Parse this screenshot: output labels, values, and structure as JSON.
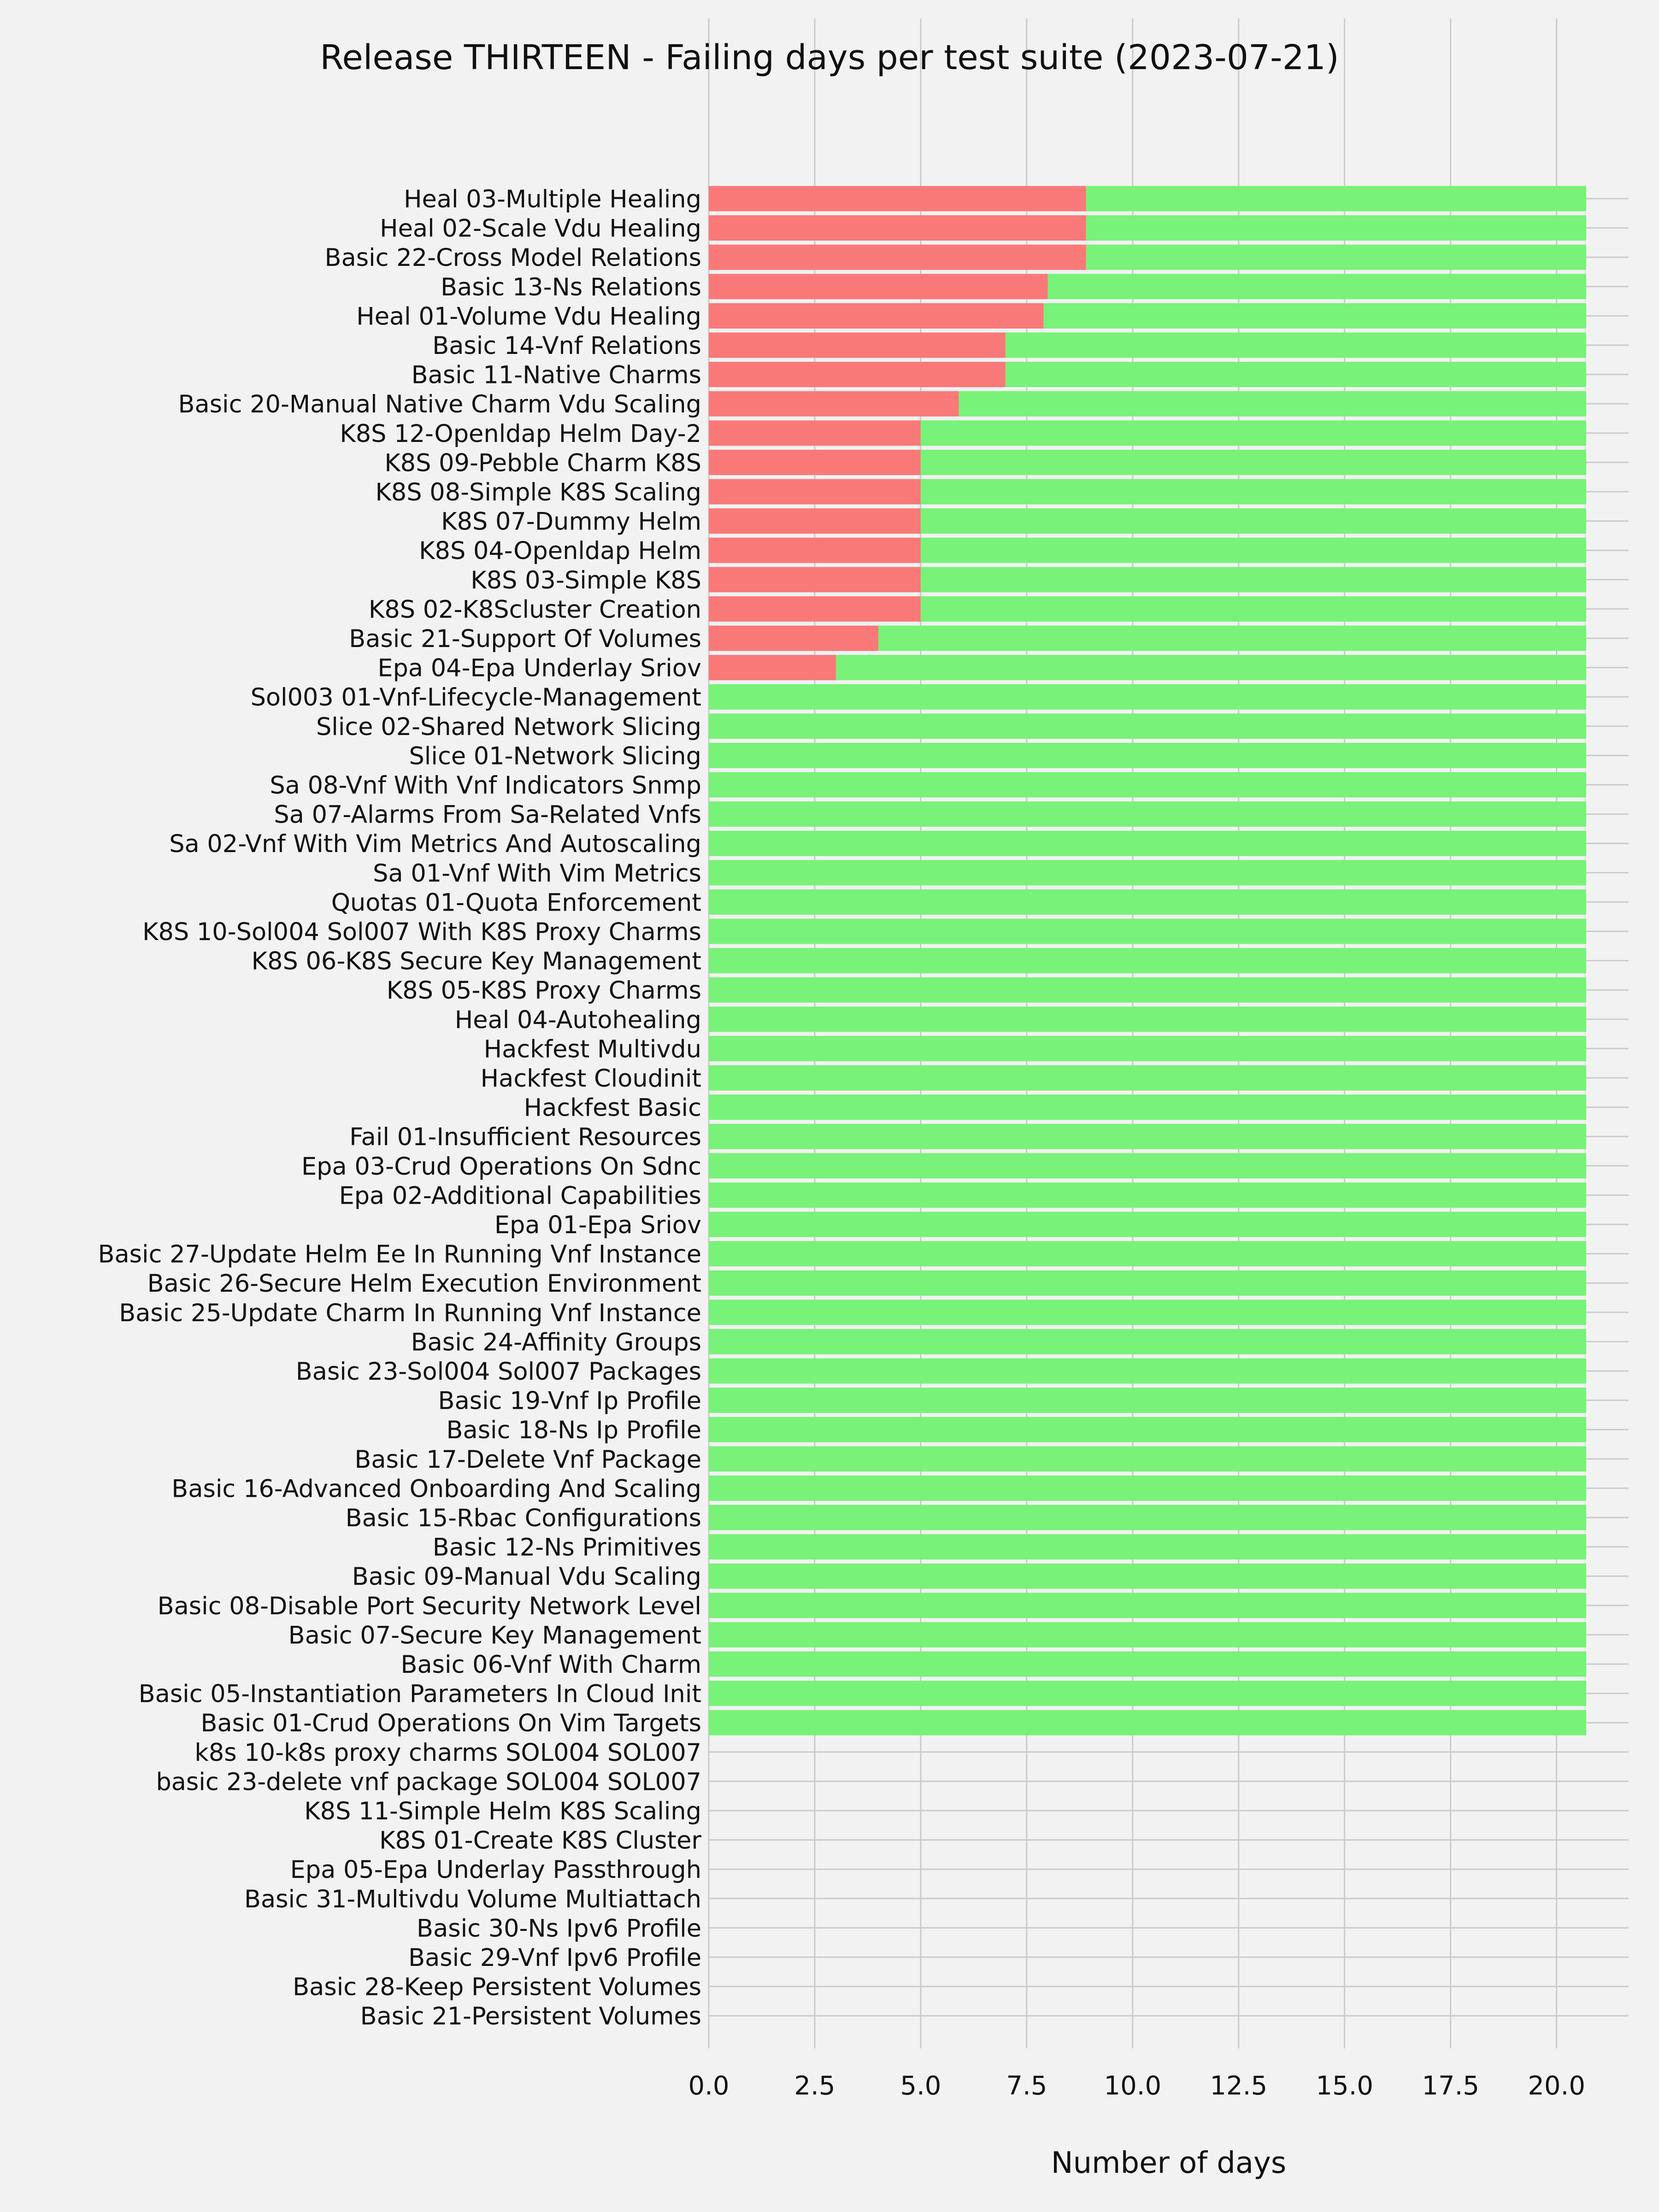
{
  "colors": {
    "background": "#f2f2f2",
    "failing": "#f97979",
    "passing": "#78f278",
    "grid": "#cbcbcb",
    "text": "#111111"
  },
  "chart_data": {
    "type": "bar",
    "orientation": "horizontal",
    "stacked": true,
    "title": "Release THIRTEEN - Failing days per test suite (2023-07-21)",
    "xlabel": "Number of days",
    "ylabel": "",
    "xlim": [
      0,
      21.7
    ],
    "xticks": [
      "0.0",
      "2.5",
      "5.0",
      "7.5",
      "10.0",
      "12.5",
      "15.0",
      "17.5",
      "20.0"
    ],
    "grid": true,
    "categories": [
      "Heal 03-Multiple Healing",
      "Heal 02-Scale Vdu Healing",
      "Basic 22-Cross Model Relations",
      "Basic 13-Ns Relations",
      "Heal 01-Volume Vdu Healing",
      "Basic 14-Vnf Relations",
      "Basic 11-Native Charms",
      "Basic 20-Manual Native Charm Vdu Scaling",
      "K8S 12-Openldap Helm Day-2",
      "K8S 09-Pebble Charm K8S",
      "K8S 08-Simple K8S Scaling",
      "K8S 07-Dummy Helm",
      "K8S 04-Openldap Helm",
      "K8S 03-Simple K8S",
      "K8S 02-K8Scluster Creation",
      "Basic 21-Support Of Volumes",
      "Epa 04-Epa Underlay Sriov",
      "Sol003 01-Vnf-Lifecycle-Management",
      "Slice 02-Shared Network Slicing",
      "Slice 01-Network Slicing",
      "Sa 08-Vnf With Vnf Indicators Snmp",
      "Sa 07-Alarms From Sa-Related Vnfs",
      "Sa 02-Vnf With Vim Metrics And Autoscaling",
      "Sa 01-Vnf With Vim Metrics",
      "Quotas 01-Quota Enforcement",
      "K8S 10-Sol004 Sol007 With K8S Proxy Charms",
      "K8S 06-K8S Secure Key Management",
      "K8S 05-K8S Proxy Charms",
      "Heal 04-Autohealing",
      "Hackfest Multivdu",
      "Hackfest Cloudinit",
      "Hackfest Basic",
      "Fail 01-Insufficient Resources",
      "Epa 03-Crud Operations On Sdnc",
      "Epa 02-Additional Capabilities",
      "Epa 01-Epa Sriov",
      "Basic 27-Update Helm Ee In Running Vnf Instance",
      "Basic 26-Secure Helm Execution Environment",
      "Basic 25-Update Charm In Running Vnf Instance",
      "Basic 24-Affinity Groups",
      "Basic 23-Sol004 Sol007 Packages",
      "Basic 19-Vnf Ip Profile",
      "Basic 18-Ns Ip Profile",
      "Basic 17-Delete Vnf Package",
      "Basic 16-Advanced Onboarding And Scaling",
      "Basic 15-Rbac Configurations",
      "Basic 12-Ns Primitives",
      "Basic 09-Manual Vdu Scaling",
      "Basic 08-Disable Port Security Network Level",
      "Basic 07-Secure Key Management",
      "Basic 06-Vnf With Charm",
      "Basic 05-Instantiation Parameters In Cloud Init",
      "Basic 01-Crud Operations On Vim Targets",
      "k8s 10-k8s proxy charms SOL004 SOL007",
      "basic 23-delete vnf package SOL004 SOL007",
      "K8S 11-Simple Helm K8S Scaling",
      "K8S 01-Create K8S Cluster",
      "Epa 05-Epa Underlay Passthrough",
      "Basic 31-Multivdu Volume Multiattach",
      "Basic 30-Ns Ipv6 Profile",
      "Basic 29-Vnf Ipv6 Profile",
      "Basic 28-Keep Persistent Volumes",
      "Basic 21-Persistent Volumes"
    ],
    "series": [
      {
        "key": "failing",
        "values": [
          8.9,
          8.9,
          8.9,
          8,
          7.9,
          7,
          7,
          5.9,
          5,
          5,
          5,
          5,
          5,
          5,
          5,
          4,
          3,
          0,
          0,
          0,
          0,
          0,
          0,
          0,
          0,
          0,
          0,
          0,
          0,
          0,
          0,
          0,
          0,
          0,
          0,
          0,
          0,
          0,
          0,
          0,
          0,
          0,
          0,
          0,
          0,
          0,
          0,
          0,
          0,
          0,
          0,
          0,
          0,
          0,
          0,
          0,
          0,
          0,
          0,
          0,
          0,
          0,
          0
        ]
      },
      {
        "key": "passing",
        "values": [
          11.8,
          11.8,
          11.8,
          12.7,
          12.8,
          13.7,
          13.7,
          14.8,
          15.7,
          15.7,
          15.7,
          15.7,
          15.7,
          15.7,
          15.7,
          16.7,
          17.7,
          20.7,
          20.7,
          20.7,
          20.7,
          20.7,
          20.7,
          20.7,
          20.7,
          20.7,
          20.7,
          20.7,
          20.7,
          20.7,
          20.7,
          20.7,
          20.7,
          20.7,
          20.7,
          20.7,
          20.7,
          20.7,
          20.7,
          20.7,
          20.7,
          20.7,
          20.7,
          20.7,
          20.7,
          20.7,
          20.7,
          20.7,
          20.7,
          20.7,
          20.7,
          20.7,
          20.7,
          0,
          0,
          0,
          0,
          0,
          0,
          0,
          0,
          0,
          0
        ]
      }
    ]
  }
}
